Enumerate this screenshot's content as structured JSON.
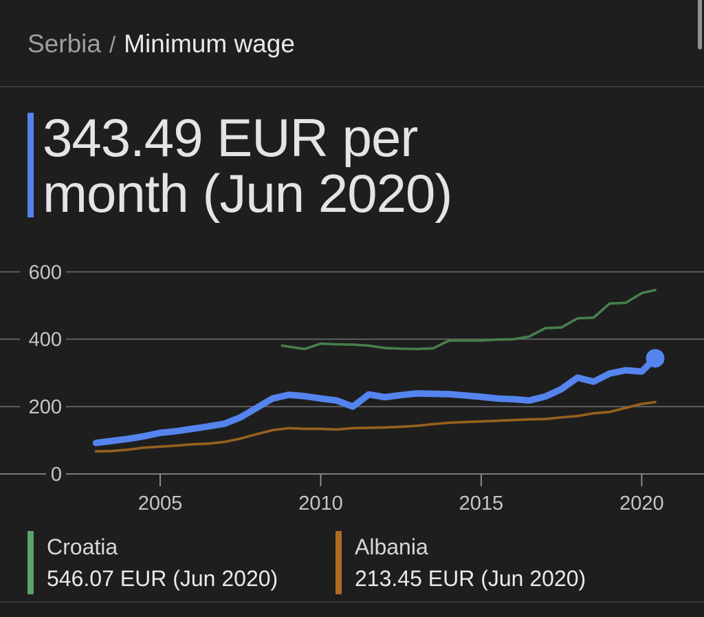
{
  "breadcrumb": {
    "parent": "Serbia",
    "separator": "/",
    "current": "Minimum wage"
  },
  "headline": {
    "line1": "343.49 EUR per",
    "line2": "month (Jun 2020)",
    "full_text": "343.49 EUR per month (Jun 2020)",
    "accent_color": "#5584ee"
  },
  "chart_data": {
    "type": "line",
    "title": "Minimum wage, EUR per month",
    "unit": "EUR per month",
    "grid": true,
    "x_axis": {
      "ticks": [
        2005,
        2010,
        2015,
        2020
      ],
      "range": [
        2000.01,
        2021.94
      ]
    },
    "y_axis": {
      "ticks": [
        0,
        200,
        400,
        600
      ],
      "range": [
        0,
        670
      ]
    },
    "series": [
      {
        "name": "Croatia",
        "color": "#46804b",
        "emphasized": false,
        "end_dot": false,
        "latest": "546.07 EUR (Jun 2020)",
        "x": [
          2008.8,
          2009.5,
          2010,
          2010.5,
          2011,
          2011.5,
          2012,
          2012.5,
          2013,
          2013.5,
          2014,
          2014.5,
          2015,
          2015.5,
          2016,
          2016.5,
          2017,
          2017.5,
          2018,
          2018.5,
          2019,
          2019.5,
          2020,
          2020.42
        ],
        "values": [
          381,
          371,
          387,
          385,
          384,
          381,
          374,
          372,
          371,
          373,
          396,
          396,
          396,
          399,
          400,
          408,
          433,
          435,
          462,
          464,
          506,
          508,
          537,
          546.07
        ]
      },
      {
        "name": "Albania",
        "color": "#98611f",
        "emphasized": false,
        "end_dot": false,
        "latest": "213.45 EUR (Jun 2020)",
        "x": [
          2003,
          2003.5,
          2004,
          2004.5,
          2005,
          2005.5,
          2006,
          2006.5,
          2007,
          2007.5,
          2008,
          2008.5,
          2009,
          2009.5,
          2010,
          2010.5,
          2011,
          2011.5,
          2012,
          2012.5,
          2013,
          2013.5,
          2014,
          2014.5,
          2015,
          2015.5,
          2016,
          2016.5,
          2017,
          2017.5,
          2018,
          2018.5,
          2019,
          2019.5,
          2020,
          2020.42
        ],
        "values": [
          67,
          68,
          72,
          78,
          81,
          84,
          88,
          90,
          95,
          105,
          118,
          130,
          136,
          134,
          134,
          132,
          136,
          137,
          138,
          140,
          143,
          148,
          152,
          154,
          156,
          158,
          160,
          162,
          163,
          168,
          172,
          180,
          184,
          196,
          208,
          213.45
        ]
      },
      {
        "name": "Serbia",
        "color": "#5584ee",
        "emphasized": true,
        "end_dot": true,
        "latest": "343.49 EUR per month (Jun 2020)",
        "x": [
          2003,
          2003.5,
          2004,
          2004.5,
          2005,
          2005.5,
          2006,
          2006.5,
          2007,
          2007.5,
          2008,
          2008.5,
          2009,
          2009.5,
          2010,
          2010.5,
          2011,
          2011.5,
          2012,
          2012.5,
          2013,
          2013.5,
          2014,
          2014.5,
          2015,
          2015.5,
          2016,
          2016.5,
          2017,
          2017.5,
          2018,
          2018.5,
          2019,
          2019.5,
          2020,
          2020.42
        ],
        "values": [
          92,
          98,
          104,
          112,
          122,
          127,
          134,
          141,
          149,
          168,
          196,
          224,
          235,
          231,
          224,
          218,
          200,
          236,
          228,
          234,
          239,
          238,
          237,
          233,
          229,
          224,
          222,
          218,
          230,
          252,
          286,
          274,
          298,
          308,
          304,
          343.49
        ]
      }
    ]
  },
  "legend": {
    "items": [
      {
        "name": "Croatia",
        "value": "546.07 EUR (Jun 2020)",
        "chip_color": "#5ba26f"
      },
      {
        "name": "Albania",
        "value": "213.45 EUR (Jun 2020)",
        "chip_color": "#b06b23"
      }
    ]
  }
}
